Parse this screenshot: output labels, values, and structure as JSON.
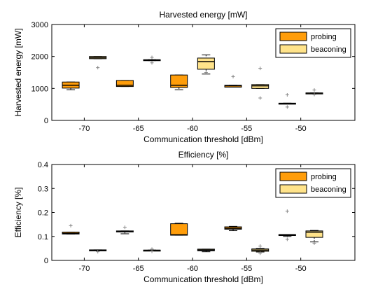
{
  "chart_data": [
    {
      "type": "box",
      "title": "Harvested energy [mW]",
      "xlabel": "Communication threshold [dBm]",
      "ylabel": "Harvested energy [mW]",
      "ylim": [
        0,
        3000
      ],
      "yticks": [
        0,
        1000,
        2000,
        3000
      ],
      "categories": [
        "-70",
        "-65",
        "-60",
        "-55",
        "-50"
      ],
      "legend_position": "top-right",
      "series": [
        {
          "name": "probing",
          "color": "#ff9d0a",
          "boxes": [
            {
              "min": 960,
              "q1": 1010,
              "median": 1100,
              "q3": 1200,
              "max": 1200,
              "outliers": []
            },
            {
              "min": 1060,
              "q1": 1060,
              "median": 1100,
              "q3": 1250,
              "max": 1250,
              "outliers": []
            },
            {
              "min": 960,
              "q1": 1030,
              "median": 1100,
              "q3": 1420,
              "max": 1420,
              "outliers": []
            },
            {
              "min": 1040,
              "q1": 1040,
              "median": 1080,
              "q3": 1100,
              "max": 1100,
              "outliers": [
                1370
              ]
            },
            {
              "min": 520,
              "q1": 520,
              "median": 530,
              "q3": 540,
              "max": 540,
              "outliers": [
                800,
                420
              ]
            }
          ]
        },
        {
          "name": "beaconing",
          "color": "#ffe38a",
          "boxes": [
            {
              "min": 1930,
              "q1": 1930,
              "median": 1960,
              "q3": 2000,
              "max": 2000,
              "outliers": [
                1650
              ]
            },
            {
              "min": 1870,
              "q1": 1870,
              "median": 1890,
              "q3": 1900,
              "max": 1900,
              "outliers": [
                1970,
                1800
              ]
            },
            {
              "min": 1450,
              "q1": 1600,
              "median": 1840,
              "q3": 1950,
              "max": 2050,
              "outliers": [
                1500
              ]
            },
            {
              "min": 1000,
              "q1": 1000,
              "median": 1080,
              "q3": 1120,
              "max": 1120,
              "outliers": [
                1630,
                700
              ]
            },
            {
              "min": 840,
              "q1": 840,
              "median": 850,
              "q3": 860,
              "max": 860,
              "outliers": [
                950,
                810
              ]
            }
          ]
        }
      ]
    },
    {
      "type": "box",
      "title": "Efficiency [%]",
      "xlabel": "Communication threshold [dBm]",
      "ylabel": "Efficiency [%]",
      "ylim": [
        0,
        0.4
      ],
      "yticks": [
        0,
        0.1,
        0.2,
        0.3,
        0.4
      ],
      "categories": [
        "-70",
        "-65",
        "-60",
        "-55",
        "-50"
      ],
      "legend_position": "top-right",
      "series": [
        {
          "name": "probing",
          "color": "#ff9d0a",
          "boxes": [
            {
              "min": 0.11,
              "q1": 0.11,
              "median": 0.113,
              "q3": 0.118,
              "max": 0.118,
              "outliers": [
                0.145
              ]
            },
            {
              "min": 0.111,
              "q1": 0.119,
              "median": 0.121,
              "q3": 0.123,
              "max": 0.123,
              "outliers": [
                0.138
              ]
            },
            {
              "min": 0.105,
              "q1": 0.105,
              "median": 0.107,
              "q3": 0.153,
              "max": 0.155,
              "outliers": []
            },
            {
              "min": 0.124,
              "q1": 0.13,
              "median": 0.134,
              "q3": 0.14,
              "max": 0.142,
              "outliers": []
            },
            {
              "min": 0.1,
              "q1": 0.104,
              "median": 0.106,
              "q3": 0.108,
              "max": 0.108,
              "outliers": [
                0.205,
                0.088
              ]
            }
          ]
        },
        {
          "name": "beaconing",
          "color": "#ffe38a",
          "boxes": [
            {
              "min": 0.042,
              "q1": 0.042,
              "median": 0.043,
              "q3": 0.044,
              "max": 0.044,
              "outliers": [
                0.036
              ]
            },
            {
              "min": 0.041,
              "q1": 0.041,
              "median": 0.042,
              "q3": 0.043,
              "max": 0.043,
              "outliers": [
                0.047,
                0.038
              ]
            },
            {
              "min": 0.036,
              "q1": 0.04,
              "median": 0.043,
              "q3": 0.047,
              "max": 0.047,
              "outliers": []
            },
            {
              "min": 0.035,
              "q1": 0.038,
              "median": 0.043,
              "q3": 0.048,
              "max": 0.05,
              "outliers": [
                0.06,
                0.03
              ]
            },
            {
              "min": 0.077,
              "q1": 0.096,
              "median": 0.118,
              "q3": 0.123,
              "max": 0.125,
              "outliers": [
                0.072
              ]
            }
          ]
        }
      ]
    }
  ]
}
